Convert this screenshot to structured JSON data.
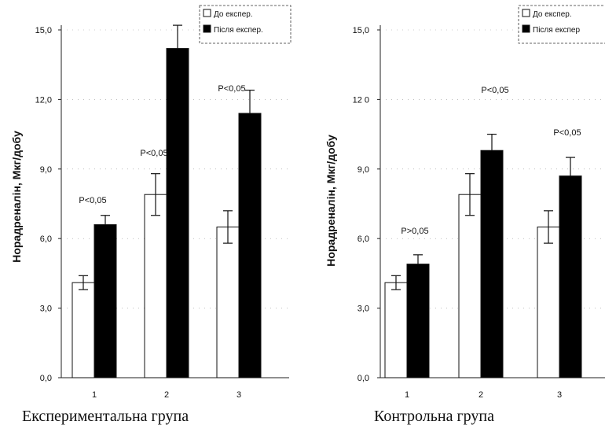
{
  "chart_data": [
    {
      "type": "bar",
      "caption": "Експериментальна група",
      "ylabel": "Норадреналін,  Мкг/добу",
      "ylim": [
        0,
        15
      ],
      "yticks": [
        "0,0",
        "3,0",
        "6,0",
        "9,0",
        "12,0",
        "15,0"
      ],
      "categories": [
        "1",
        "2",
        "3"
      ],
      "series": [
        {
          "name": "До експер.",
          "color": "#ffffff",
          "values": [
            4.1,
            7.9,
            6.5
          ],
          "errors": [
            0.3,
            0.9,
            0.7
          ]
        },
        {
          "name": "Після експер.",
          "color": "#000000",
          "values": [
            6.6,
            14.2,
            11.4
          ],
          "errors": [
            0.4,
            1.0,
            1.0
          ]
        }
      ],
      "annotations": [
        "P<0,05",
        "P<0,05",
        "P<0,05"
      ],
      "legend_position": "top-right"
    },
    {
      "type": "bar",
      "caption": "Контрольна група",
      "ylabel": "Норадреналін,  Мкг/добу",
      "ylim": [
        0,
        15
      ],
      "yticks": [
        "0,0",
        "3,0",
        "6,0",
        "9,0",
        "12 0",
        "15,0"
      ],
      "categories": [
        "1",
        "2",
        "3"
      ],
      "series": [
        {
          "name": "До експер.",
          "color": "#ffffff",
          "values": [
            4.1,
            7.9,
            6.5
          ],
          "errors": [
            0.3,
            0.9,
            0.7
          ]
        },
        {
          "name": "Після експер",
          "color": "#000000",
          "values": [
            4.9,
            9.8,
            8.7
          ],
          "errors": [
            0.4,
            0.7,
            0.8
          ]
        }
      ],
      "annotations": [
        "P>0,05",
        "P<0,05",
        "P<0,05"
      ],
      "legend_position": "top-right"
    }
  ]
}
